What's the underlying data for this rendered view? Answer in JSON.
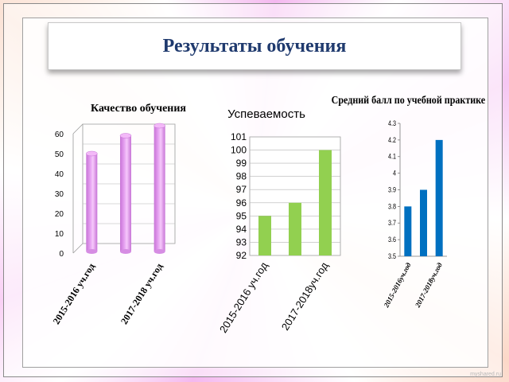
{
  "slide": {
    "title": "Результаты обучения",
    "watermark": "myshared.ru"
  },
  "colors": {
    "pink_bar": "#e49ef0",
    "green_bar": "#92d050",
    "blue_bar": "#0070c0",
    "title_text": "#1f3a6e"
  },
  "chart_data": [
    {
      "type": "bar",
      "title": "Качество обучения",
      "categories": [
        "2015-2016 уч.год",
        "",
        "2017-2018 уч.год"
      ],
      "values": [
        46,
        55,
        60
      ],
      "ylim": [
        0,
        60
      ],
      "yticks": [
        0,
        10,
        20,
        30,
        40,
        50,
        60
      ],
      "style": "3d-cylinder",
      "grid": true,
      "color": "#e49ef0"
    },
    {
      "type": "bar",
      "title": "Успеваемость",
      "categories": [
        "2015-2016 уч.год",
        "",
        "2017-2018уч.год"
      ],
      "values": [
        95,
        96,
        100
      ],
      "ylim": [
        92,
        101
      ],
      "yticks": [
        92,
        93,
        94,
        95,
        96,
        97,
        98,
        99,
        100,
        101
      ],
      "grid": true,
      "color": "#92d050"
    },
    {
      "type": "bar",
      "title": "Средний балл по учебной практике",
      "categories": [
        "2015-2016уч.год",
        "",
        "2017-2018уч.год"
      ],
      "values": [
        3.8,
        3.9,
        4.2
      ],
      "ylim": [
        3.5,
        4.3
      ],
      "yticks": [
        "3.5",
        "3.6",
        "3.7",
        "3.8",
        "3.9",
        "4",
        "4.1",
        "4.2",
        "4.3"
      ],
      "grid": false,
      "color": "#0070c0"
    }
  ]
}
